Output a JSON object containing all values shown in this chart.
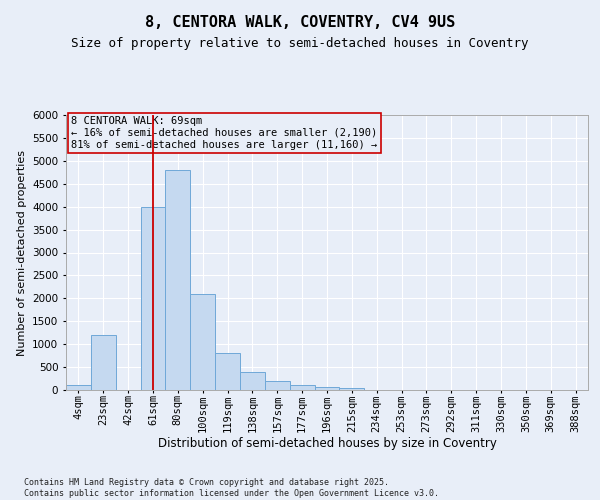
{
  "title": "8, CENTORA WALK, COVENTRY, CV4 9US",
  "subtitle": "Size of property relative to semi-detached houses in Coventry",
  "xlabel": "Distribution of semi-detached houses by size in Coventry",
  "ylabel": "Number of semi-detached properties",
  "categories": [
    "4sqm",
    "23sqm",
    "42sqm",
    "61sqm",
    "80sqm",
    "100sqm",
    "119sqm",
    "138sqm",
    "157sqm",
    "177sqm",
    "196sqm",
    "215sqm",
    "234sqm",
    "253sqm",
    "273sqm",
    "292sqm",
    "311sqm",
    "330sqm",
    "350sqm",
    "369sqm",
    "388sqm"
  ],
  "values": [
    100,
    1200,
    0,
    4000,
    4800,
    2100,
    800,
    400,
    200,
    100,
    60,
    40,
    0,
    0,
    0,
    0,
    0,
    0,
    0,
    0,
    0
  ],
  "bar_color": "#c5d9f0",
  "bar_edge_color": "#6fa8d8",
  "vline_x": 3,
  "vline_color": "#cc0000",
  "annotation_text": "8 CENTORA WALK: 69sqm\n← 16% of semi-detached houses are smaller (2,190)\n81% of semi-detached houses are larger (11,160) →",
  "ylim": [
    0,
    6000
  ],
  "yticks": [
    0,
    500,
    1000,
    1500,
    2000,
    2500,
    3000,
    3500,
    4000,
    4500,
    5000,
    5500,
    6000
  ],
  "background_color": "#e8eef8",
  "grid_color": "#ffffff",
  "footer": "Contains HM Land Registry data © Crown copyright and database right 2025.\nContains public sector information licensed under the Open Government Licence v3.0.",
  "title_fontsize": 11,
  "subtitle_fontsize": 9,
  "xlabel_fontsize": 8.5,
  "ylabel_fontsize": 8,
  "tick_fontsize": 7.5,
  "annot_fontsize": 7.5
}
